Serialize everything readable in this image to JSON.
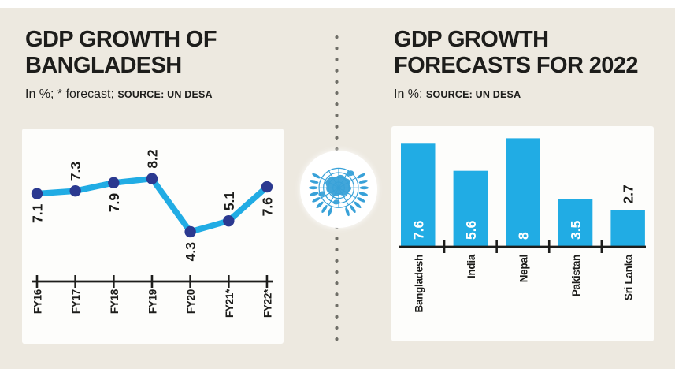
{
  "headers": {
    "left": {
      "title_line1": "GDP GROWTH OF",
      "title_line2": "BANGLADESH",
      "note": "In %; * forecast;",
      "source": "SOURCE: UN DESA"
    },
    "right": {
      "title_line1": "GDP GROWTH",
      "title_line2": "FORECASTS FOR 2022",
      "note": "In %;",
      "source": "SOURCE: UN DESA"
    }
  },
  "divider": {
    "style": "vertical-dotted-line",
    "logo": "united-nations-emblem"
  },
  "colors": {
    "accent_cyan": "#21ace4",
    "point_navy": "#2b3990",
    "un_blue": "#38a1d8",
    "background_beige": "#ede9e0",
    "panel_white": "#fdfdfb",
    "text_black": "#1d1d1b",
    "divider_dot_gray": "#6f6e67",
    "bar_value_label_white": "#ffffff"
  },
  "chart_data": [
    {
      "type": "line",
      "title": "GDP GROWTH OF BANGLADESH",
      "unit_note": "In %; * forecast;",
      "source": "SOURCE: UN DESA",
      "categories": [
        "FY16",
        "FY17",
        "FY18",
        "FY19",
        "FY20",
        "FY21*",
        "FY22*"
      ],
      "values": [
        7.1,
        7.3,
        7.9,
        8.2,
        4.3,
        5.1,
        7.6
      ],
      "value_labels": [
        "7.1",
        "7.3",
        "7.9",
        "8.2",
        "4.3",
        "5.1",
        "7.6"
      ],
      "ylim": [
        3.8,
        9.0
      ],
      "grid": false,
      "legend": false,
      "tick_label_rotation_deg": 90,
      "value_label_rotation_deg": 90
    },
    {
      "type": "bar",
      "title": "GDP GROWTH FORECASTS FOR 2022",
      "unit_note": "In %;",
      "source": "SOURCE: UN DESA",
      "categories": [
        "Bangladesh",
        "India",
        "Nepal",
        "Pakistan",
        "Sri Lanka"
      ],
      "values": [
        7.6,
        5.6,
        8,
        3.5,
        2.7
      ],
      "value_labels": [
        "7.6",
        "5.6",
        "8",
        "3.5",
        "2.7"
      ],
      "ylim": [
        0,
        8.9
      ],
      "grid": false,
      "legend": false,
      "tick_label_rotation_deg": 90,
      "value_label_rotation_deg": 90
    }
  ]
}
